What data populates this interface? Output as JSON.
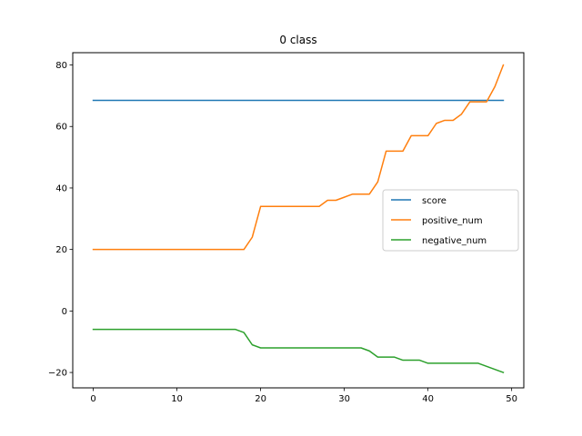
{
  "chart_data": {
    "type": "line",
    "title": "0 class",
    "xlabel": "",
    "ylabel": "",
    "xlim": [
      -2.45,
      51.45
    ],
    "ylim": [
      -25,
      84
    ],
    "xticks": [
      0,
      10,
      20,
      30,
      40,
      50
    ],
    "yticks": [
      -20,
      0,
      20,
      40,
      60,
      80
    ],
    "grid": false,
    "legend_position": "center-right",
    "x": [
      0,
      1,
      2,
      3,
      4,
      5,
      6,
      7,
      8,
      9,
      10,
      11,
      12,
      13,
      14,
      15,
      16,
      17,
      18,
      19,
      20,
      21,
      22,
      23,
      24,
      25,
      26,
      27,
      28,
      29,
      30,
      31,
      32,
      33,
      34,
      35,
      36,
      37,
      38,
      39,
      40,
      41,
      42,
      43,
      44,
      45,
      46,
      47,
      48,
      49
    ],
    "series": [
      {
        "name": "score",
        "color": "#1f77b4",
        "values": [
          68.5,
          68.5,
          68.5,
          68.5,
          68.5,
          68.5,
          68.5,
          68.5,
          68.5,
          68.5,
          68.5,
          68.5,
          68.5,
          68.5,
          68.5,
          68.5,
          68.5,
          68.5,
          68.5,
          68.5,
          68.5,
          68.5,
          68.5,
          68.5,
          68.5,
          68.5,
          68.5,
          68.5,
          68.5,
          68.5,
          68.5,
          68.5,
          68.5,
          68.5,
          68.5,
          68.5,
          68.5,
          68.5,
          68.5,
          68.5,
          68.5,
          68.5,
          68.5,
          68.5,
          68.5,
          68.5,
          68.5,
          68.5,
          68.5,
          68.5
        ]
      },
      {
        "name": "positive_num",
        "color": "#ff7f0e",
        "values": [
          20,
          20,
          20,
          20,
          20,
          20,
          20,
          20,
          20,
          20,
          20,
          20,
          20,
          20,
          20,
          20,
          20,
          20,
          20,
          24,
          34,
          34,
          34,
          34,
          34,
          34,
          34,
          34,
          36,
          36,
          37,
          38,
          38,
          38,
          42,
          52,
          52,
          52,
          57,
          57,
          57,
          61,
          62,
          62,
          64,
          68,
          68,
          68,
          73,
          80
        ]
      },
      {
        "name": "negative_num",
        "color": "#2ca02c",
        "values": [
          -6,
          -6,
          -6,
          -6,
          -6,
          -6,
          -6,
          -6,
          -6,
          -6,
          -6,
          -6,
          -6,
          -6,
          -6,
          -6,
          -6,
          -6,
          -7,
          -11,
          -12,
          -12,
          -12,
          -12,
          -12,
          -12,
          -12,
          -12,
          -12,
          -12,
          -12,
          -12,
          -12,
          -13,
          -15,
          -15,
          -15,
          -16,
          -16,
          -16,
          -17,
          -17,
          -17,
          -17,
          -17,
          -17,
          -17,
          -18,
          -19,
          -20
        ]
      }
    ]
  }
}
